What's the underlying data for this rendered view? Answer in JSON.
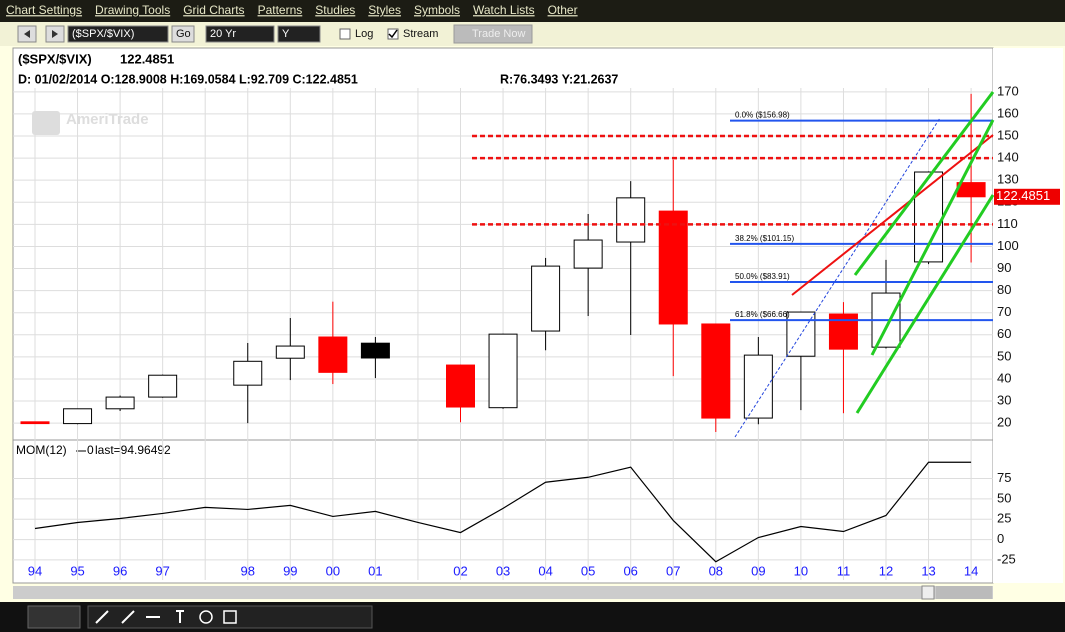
{
  "menu": [
    "Chart Settings",
    "Drawing Tools",
    "Grid Charts",
    "Patterns",
    "Studies",
    "Styles",
    "Symbols",
    "Watch Lists",
    "Other"
  ],
  "toolbar": {
    "symbol": "($SPX/$VIX)",
    "go": "Go",
    "period": "20 Yr",
    "interval": "Y",
    "log": "Log",
    "stream": "Stream",
    "trade": "Trade Now"
  },
  "header": {
    "symbol": "($SPX/$VIX)",
    "price": "122.4851",
    "ohlc": "D: 01/02/2014  O:128.9008  H:169.0584  L:92.709  C:122.4851",
    "ry": "R:76.3493  Y:21.2637"
  },
  "watermark": "AmeriTrade",
  "chart_data": [
    {
      "type": "candlestick",
      "categories": [
        "94",
        "95",
        "96",
        "97",
        null,
        "98",
        "99",
        "00",
        "01",
        null,
        "02",
        "03",
        "04",
        "05",
        "06",
        "07",
        "08",
        "09",
        "10",
        "11",
        "12",
        "13",
        "14"
      ],
      "open": [
        20.6,
        19.8,
        26.5,
        31.8,
        null,
        37.2,
        49.4,
        59,
        56.2,
        null,
        46.3,
        27,
        61.7,
        90.2,
        102,
        116,
        64.9,
        22.3,
        50.3,
        69.4,
        54.4,
        93,
        128.9008
      ],
      "high": [
        20.6,
        26.5,
        32.5,
        42,
        null,
        56.3,
        67.6,
        75,
        59,
        null,
        46.5,
        60.5,
        94.8,
        114.7,
        129.6,
        139.2,
        65,
        59,
        70.5,
        74.8,
        93.9,
        134,
        169.0584
      ],
      "low": [
        19.6,
        19.5,
        25.5,
        31.5,
        null,
        20,
        39.5,
        37.7,
        40.4,
        null,
        20.4,
        26.5,
        53,
        68.5,
        59.9,
        41.3,
        16,
        19.5,
        25.9,
        24.5,
        53.8,
        92,
        92.709
      ],
      "close": [
        19.8,
        26.5,
        31.8,
        41.7,
        null,
        48,
        54.9,
        43,
        49.5,
        null,
        27.3,
        60.3,
        91.1,
        102.9,
        122,
        64.9,
        22.3,
        50.8,
        70.3,
        53.5,
        78.9,
        133.7,
        122.4851
      ],
      "colors": [
        "#ff0000",
        "#ffffff",
        "#ffffff",
        "#ffffff",
        null,
        "#ffffff",
        "#ffffff",
        "#ff0000",
        "#000000",
        null,
        "#ff0000",
        "#ffffff",
        "#ffffff",
        "#ffffff",
        "#ffffff",
        "#ff0000",
        "#ff0000",
        "#ffffff",
        "#ffffff",
        "#ff0000",
        "#ffffff",
        "#ffffff",
        "#ff0000"
      ],
      "ylim": [
        14,
        174
      ],
      "yticks": [
        20,
        30,
        40,
        50,
        60,
        70,
        80,
        90,
        100,
        110,
        120,
        130,
        140,
        150,
        160,
        170
      ],
      "grid": true,
      "last_label": "122.4851",
      "hlines": [
        150,
        140,
        110
      ],
      "fib_levels": [
        {
          "value": 156.98,
          "label": "0.0%  ($156.98)"
        },
        {
          "value": 101.15,
          "label": "38.2%  ($101.15)"
        },
        {
          "value": 83.91,
          "label": "50.0%  ($83.91)"
        },
        {
          "value": 66.66,
          "label": "61.8%  ($66.66)"
        }
      ]
    },
    {
      "type": "line",
      "title": "MOM(12)",
      "zero_label": "0",
      "last_label": "last=94.96492",
      "color": "#000000",
      "values": [
        13.6,
        21,
        25.9,
        32.1,
        39.5,
        37,
        42,
        28.4,
        34.6,
        21,
        8.6,
        38.3,
        70.4,
        76.5,
        88.9,
        23.5,
        -27.2,
        2.5,
        16,
        9.9,
        29.6,
        95,
        94.96492
      ],
      "ylim": [
        -30,
        110
      ],
      "yticks": [
        -25,
        0,
        25,
        50,
        75
      ],
      "grid": true
    }
  ]
}
